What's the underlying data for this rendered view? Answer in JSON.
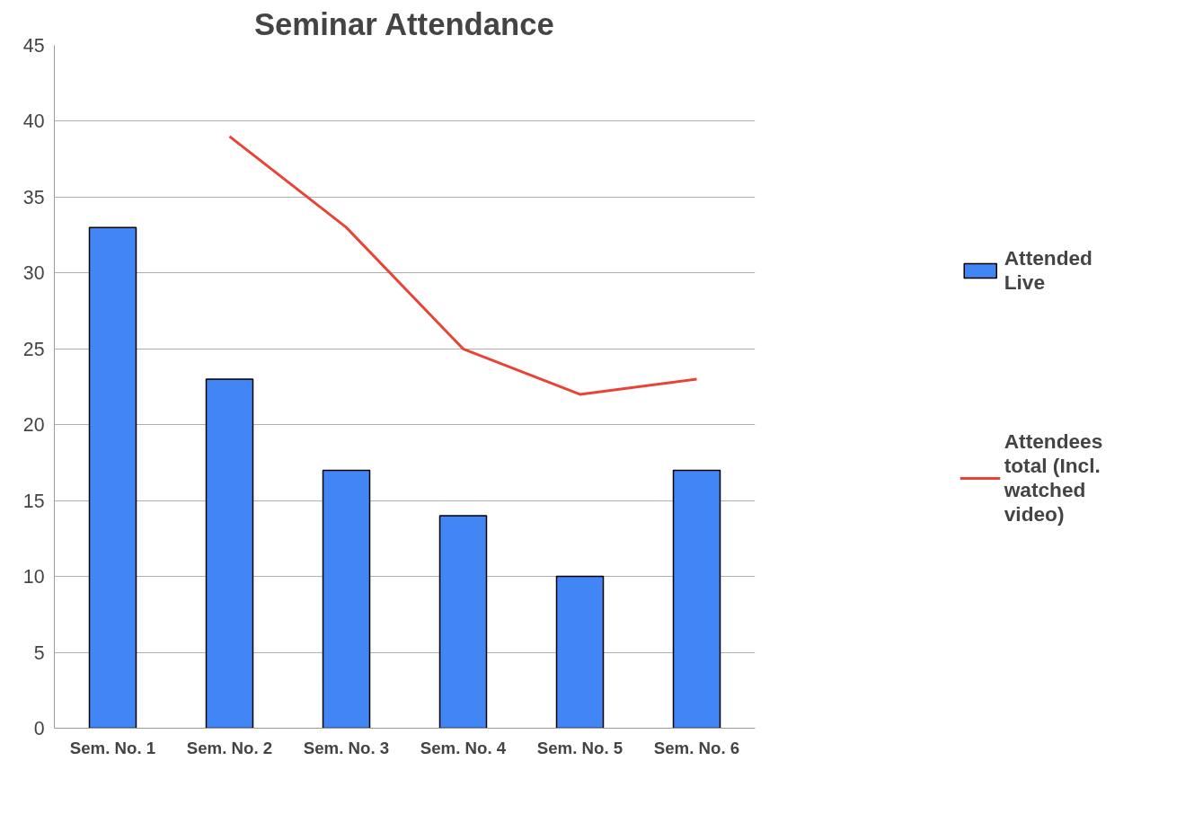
{
  "chart_data": {
    "type": "bar",
    "title": "Seminar Attendance",
    "categories": [
      "Sem. No. 1",
      "Sem. No. 2",
      "Sem. No. 3",
      "Sem. No. 4",
      "Sem. No. 5",
      "Sem. No. 6"
    ],
    "series": [
      {
        "name": "Attended Live",
        "color": "#4285f4",
        "values": [
          33,
          23,
          17,
          14,
          10,
          17
        ]
      },
      {
        "name": "Attendees total (Incl. watched video)",
        "type": "line",
        "color": "#ea4335",
        "values": [
          null,
          39,
          33,
          25,
          22,
          23
        ]
      }
    ],
    "ylim": [
      0,
      45
    ],
    "yticks": [
      0,
      5,
      10,
      15,
      20,
      25,
      30,
      35,
      40,
      45
    ],
    "grid": "y",
    "legend": "right"
  }
}
